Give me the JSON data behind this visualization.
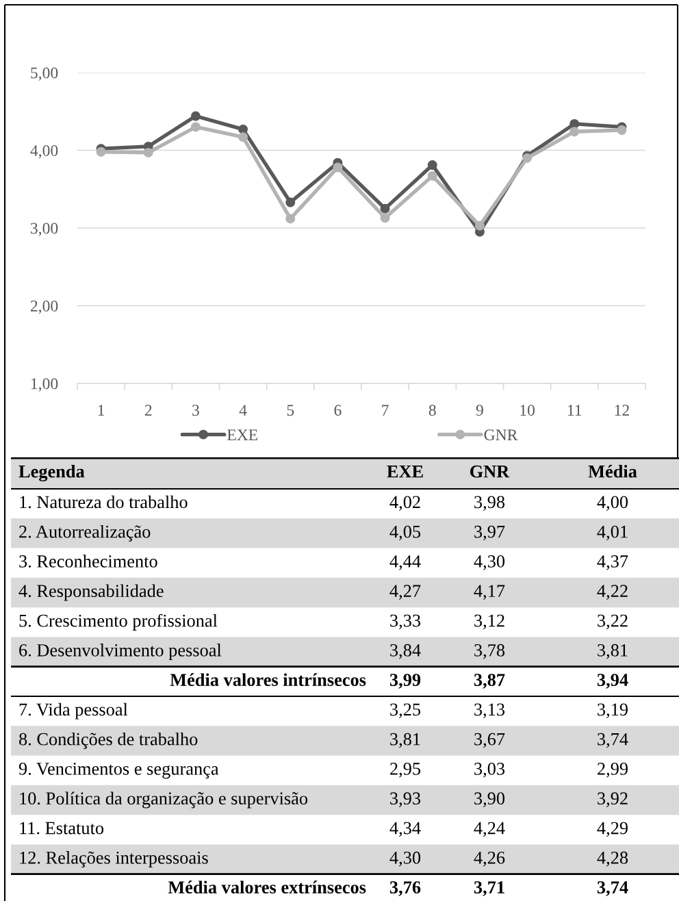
{
  "chart_data": [
    {
      "type": "line",
      "categories": [
        "1",
        "2",
        "3",
        "4",
        "5",
        "6",
        "7",
        "8",
        "9",
        "10",
        "11",
        "12"
      ],
      "series": [
        {
          "name": "EXE",
          "color": "#595959",
          "values": [
            4.02,
            4.05,
            4.44,
            4.27,
            3.33,
            3.84,
            3.25,
            3.81,
            2.95,
            3.93,
            4.34,
            4.3
          ]
        },
        {
          "name": "GNR",
          "color": "#b3b3b3",
          "values": [
            3.98,
            3.97,
            4.3,
            4.17,
            3.12,
            3.78,
            3.13,
            3.67,
            3.03,
            3.9,
            4.24,
            4.26
          ]
        }
      ],
      "ylim": [
        1,
        5
      ],
      "yticks": [
        {
          "value": 1,
          "label": "1,00"
        },
        {
          "value": 2,
          "label": "2,00"
        },
        {
          "value": 3,
          "label": "3,00"
        },
        {
          "value": 4,
          "label": "4,00"
        },
        {
          "value": 5,
          "label": "5,00"
        }
      ],
      "grid": "y",
      "legend": "bottom",
      "marker": "circle",
      "line_style": "solid"
    },
    {
      "type": "other",
      "title": "Legenda",
      "categories": [
        "1. Natureza do trabalho",
        "2. Autorrealização",
        "3. Reconhecimento",
        "4. Responsabilidade",
        "5. Crescimento profissional",
        "6. Desenvolvimento pessoal",
        "7. Vida pessoal",
        "8. Condições de trabalho",
        "9. Vencimentos e segurança",
        "10. Política da organização e supervisão",
        "11. Estatuto",
        "12. Relações interpessoais"
      ],
      "series": [
        {
          "name": "EXE",
          "values": [
            4.02,
            4.05,
            4.44,
            4.27,
            3.33,
            3.84,
            3.25,
            3.81,
            2.95,
            3.93,
            4.34,
            4.3
          ],
          "value_labels": [
            "4,02",
            "4,05",
            "4,44",
            "4,27",
            "3,33",
            "3,84",
            "3,25",
            "3,81",
            "2,95",
            "3,93",
            "4,34",
            "4,30"
          ]
        },
        {
          "name": "GNR",
          "values": [
            3.98,
            3.97,
            4.3,
            4.17,
            3.12,
            3.78,
            3.13,
            3.67,
            3.03,
            3.9,
            4.24,
            4.26
          ],
          "value_labels": [
            "3,98",
            "3,97",
            "4,30",
            "4,17",
            "3,12",
            "3,78",
            "3,13",
            "3,67",
            "3,03",
            "3,90",
            "4,24",
            "4,26"
          ]
        },
        {
          "name": "Média",
          "values": [
            4.0,
            4.01,
            4.37,
            4.22,
            3.22,
            3.81,
            3.19,
            3.74,
            2.99,
            3.92,
            4.29,
            4.28
          ],
          "value_labels": [
            "4,00",
            "4,01",
            "4,37",
            "4,22",
            "3,22",
            "3,81",
            "3,19",
            "3,74",
            "2,99",
            "3,92",
            "4,29",
            "4,28"
          ]
        }
      ],
      "annotations": [
        "Média valores intrínsecos",
        "3,99",
        "3,87",
        "3,94",
        "Média valores extrínsecos",
        "3,76",
        "3,71",
        "3,74"
      ]
    }
  ]
}
